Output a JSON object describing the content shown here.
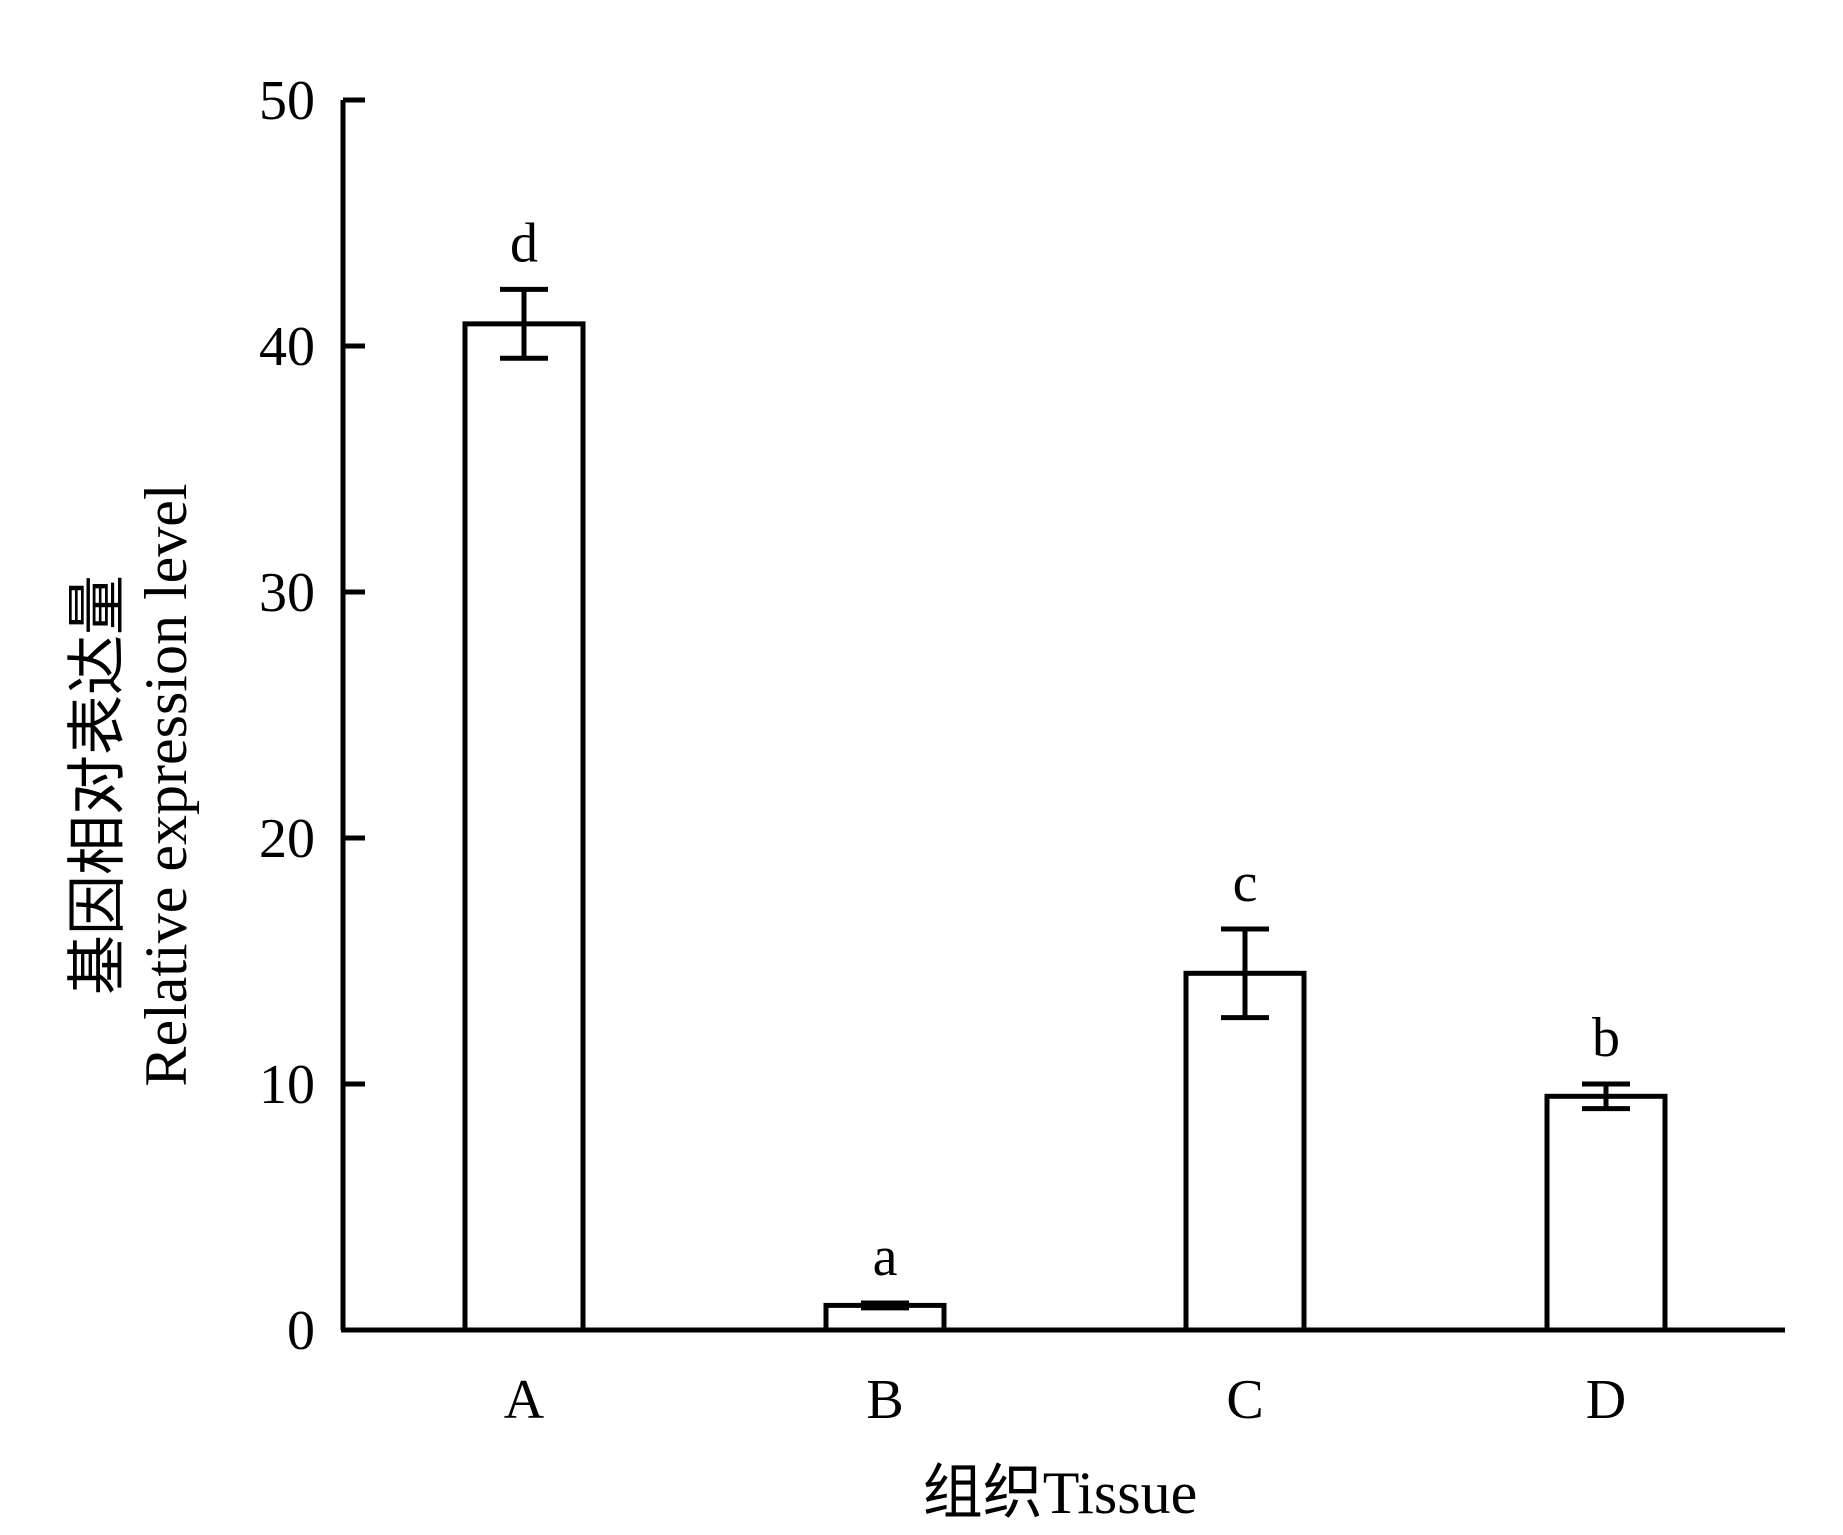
{
  "chart_data": {
    "type": "bar",
    "categories": [
      "A",
      "B",
      "C",
      "D"
    ],
    "values": [
      40.9,
      1.0,
      14.5,
      9.5
    ],
    "errors": [
      1.4,
      0.1,
      1.8,
      0.5
    ],
    "significance_labels": [
      "d",
      "a",
      "c",
      "b"
    ],
    "xlabel": "组织Tissue",
    "ylabel": [
      "基因相对表达量",
      "Relative expression level"
    ],
    "ylim": [
      0,
      50
    ],
    "yticks": [
      0,
      10,
      20,
      30,
      40,
      50
    ],
    "bar_fill": "#ffffff",
    "stroke_color": "#000000",
    "grid": false
  }
}
